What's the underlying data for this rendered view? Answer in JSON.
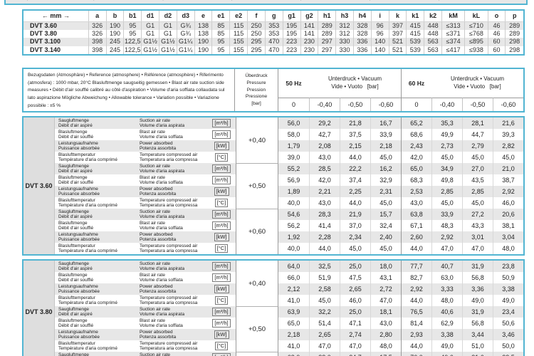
{
  "colors": {
    "table_border": "#52b5d2",
    "row_stripe": "#e7e7e7",
    "model_column_bg": "#dedede"
  },
  "clipped_top_table": {
    "fragments": [
      "1,5",
      "5,5",
      "16,5",
      "11,5",
      "21,5",
      "12,5",
      "16,5",
      "86"
    ]
  },
  "dimensions_table": {
    "unit_header": "← mm →",
    "columns": [
      "a",
      "b",
      "b1",
      "d1",
      "d2",
      "d3",
      "e",
      "e1",
      "e2",
      "f",
      "g",
      "g1",
      "g2",
      "h1",
      "h3",
      "h4",
      "i",
      "k",
      "k1",
      "k2",
      "kM",
      "kL",
      "o",
      "p"
    ],
    "rows": [
      {
        "model": "DVT 3.60",
        "values": [
          "326",
          "190",
          "95",
          "G1",
          "G1",
          "G¾",
          "138",
          "85",
          "115",
          "250",
          "353",
          "195",
          "141",
          "289",
          "312",
          "328",
          "96",
          "397",
          "415",
          "448",
          "≤313",
          "≤710",
          "46",
          "289"
        ]
      },
      {
        "model": "DVT 3.80",
        "values": [
          "326",
          "190",
          "95",
          "G1",
          "G1",
          "G¾",
          "138",
          "85",
          "115",
          "250",
          "353",
          "195",
          "141",
          "289",
          "312",
          "328",
          "96",
          "397",
          "415",
          "448",
          "≤371",
          "≤768",
          "46",
          "289"
        ]
      },
      {
        "model": "DVT 3.100",
        "values": [
          "398",
          "245",
          "122,5",
          "G1½",
          "G1½",
          "G1¼",
          "190",
          "95",
          "155",
          "295",
          "470",
          "223",
          "230",
          "297",
          "330",
          "336",
          "140",
          "521",
          "539",
          "563",
          "≤374",
          "≤895",
          "60",
          "298"
        ]
      },
      {
        "model": "DVT 3.140",
        "values": [
          "398",
          "245",
          "122,5",
          "G1½",
          "G1½",
          "G1¼",
          "190",
          "95",
          "155",
          "295",
          "470",
          "223",
          "230",
          "297",
          "330",
          "336",
          "140",
          "521",
          "539",
          "563",
          "≤417",
          "≤938",
          "60",
          "298"
        ]
      }
    ]
  },
  "performance": {
    "reference_notes": [
      "Bezugsdaten (Atmosphäre) • Reference (atmosphere) • Référence (atmosphère) • Riferimento (atmosfera) : 1000 mbar, 20°C",
      "Blasluftmenge saugseitig gemessen • Blast air rate suction side measures • Débit d'air soufflé calibré au côté d'aspiration • Volume d'aria soffiata collaudata sul lato aspirazione",
      "Mögliche Abweichung • Allowable tolerance • Variation possible • Variazione possibile : ±5 %"
    ],
    "pressure_column": [
      "Überdruck",
      "Pressure",
      "Pression",
      "Pressione",
      "[bar]"
    ],
    "frequency_groups": [
      {
        "label": "50 Hz",
        "vacuum_line1": "Unterdruck • Vacuum",
        "vacuum_line2": "Vide • Vuoto   [bar]"
      },
      {
        "label": "60 Hz",
        "vacuum_line1": "Unterdruck • Vacuum",
        "vacuum_line2": "Vide • Vuoto   [bar]"
      }
    ],
    "vacuum_levels": [
      "0",
      "-0,40",
      "-0,50",
      "-0,60",
      "0",
      "-0,40",
      "-0,50",
      "-0,60"
    ],
    "row_labels": [
      {
        "line1": "Saugluftmenge",
        "line2": "Débit d'air aspiré",
        "line3": "Suction air rate",
        "line4": "Volume d'aria aspirata",
        "unit": "[m³/h]"
      },
      {
        "line1": "Blasluftmenge",
        "line2": "Débit d'air soufflé",
        "line3": "Blast air rate",
        "line4": "Volume d'aria soffiata",
        "unit": "[m³/h]"
      },
      {
        "line1": "Leistungsaufnahme",
        "line2": "Puissance absorbée",
        "line3": "Power absorbed",
        "line4": "Potenza assorbita",
        "unit": "[kW]"
      },
      {
        "line1": "Blaslufttemperatur",
        "line2": "Température d'aria comprimé",
        "line3": "Temperature compressed air",
        "line4": "Temperatura aria compressa",
        "unit": "[°C]"
      }
    ],
    "sections": [
      {
        "model": "DVT 3.60",
        "blocks": [
          {
            "pressure": "+0,40",
            "rows": [
              [
                "56,0",
                "29,2",
                "21,8",
                "16,7",
                "65,2",
                "35,3",
                "28,1",
                "21,6"
              ],
              [
                "58,0",
                "42,7",
                "37,5",
                "33,9",
                "68,6",
                "49,9",
                "44,7",
                "39,3"
              ],
              [
                "1,79",
                "2,08",
                "2,15",
                "2,18",
                "2,43",
                "2,73",
                "2,79",
                "2,82"
              ],
              [
                "39,0",
                "43,0",
                "44,0",
                "45,0",
                "42,0",
                "45,0",
                "45,0",
                "45,0"
              ]
            ]
          },
          {
            "pressure": "+0,50",
            "rows": [
              [
                "55,2",
                "28,5",
                "22,2",
                "16,2",
                "65,0",
                "34,9",
                "27,0",
                "21,0"
              ],
              [
                "56,9",
                "42,0",
                "37,4",
                "32,9",
                "68,3",
                "49,8",
                "43,5",
                "38,7"
              ],
              [
                "1,89",
                "2,21",
                "2,25",
                "2,31",
                "2,53",
                "2,85",
                "2,85",
                "2,92"
              ],
              [
                "40,0",
                "43,0",
                "44,0",
                "45,0",
                "43,0",
                "45,0",
                "45,0",
                "46,0"
              ]
            ]
          },
          {
            "pressure": "+0,60",
            "rows": [
              [
                "54,6",
                "28,3",
                "21,9",
                "15,7",
                "63,8",
                "33,9",
                "27,2",
                "20,6"
              ],
              [
                "56,2",
                "41,4",
                "37,0",
                "32,4",
                "67,1",
                "48,3",
                "43,3",
                "38,1"
              ],
              [
                "1,92",
                "2,28",
                "2,34",
                "2,40",
                "2,60",
                "2,92",
                "3,01",
                "3,04"
              ],
              [
                "40,0",
                "44,0",
                "45,0",
                "45,0",
                "44,0",
                "47,0",
                "47,0",
                "48,0"
              ]
            ]
          }
        ]
      },
      {
        "model": "DVT 3.80",
        "blocks": [
          {
            "pressure": "+0,40",
            "rows": [
              [
                "64,0",
                "32,5",
                "25,0",
                "18,0",
                "77,7",
                "40,7",
                "31,9",
                "23,8"
              ],
              [
                "66,0",
                "51,9",
                "47,5",
                "43,1",
                "82,7",
                "63,0",
                "56,8",
                "50,9"
              ],
              [
                "2,12",
                "2,58",
                "2,65",
                "2,72",
                "2,92",
                "3,33",
                "3,36",
                "3,38"
              ],
              [
                "41,0",
                "45,0",
                "46,0",
                "47,0",
                "44,0",
                "48,0",
                "49,0",
                "49,0"
              ]
            ]
          },
          {
            "pressure": "+0,50",
            "rows": [
              [
                "63,9",
                "32,2",
                "25,0",
                "18,1",
                "76,5",
                "40,6",
                "31,9",
                "23,4"
              ],
              [
                "65,0",
                "51,4",
                "47,1",
                "43,0",
                "81,4",
                "62,9",
                "56,8",
                "50,6"
              ],
              [
                "2,18",
                "2,65",
                "2,74",
                "2,80",
                "2,93",
                "3,38",
                "3,44",
                "3,46"
              ],
              [
                "41,0",
                "47,0",
                "47,0",
                "48,0",
                "44,0",
                "49,0",
                "51,0",
                "50,0"
              ]
            ]
          },
          {
            "pressure": "",
            "rows": [
              [
                "63,0",
                "32,0",
                "24,7",
                "17,5",
                "76,0",
                "40,6",
                "31,6",
                "23,5"
              ]
            ]
          }
        ]
      }
    ]
  }
}
